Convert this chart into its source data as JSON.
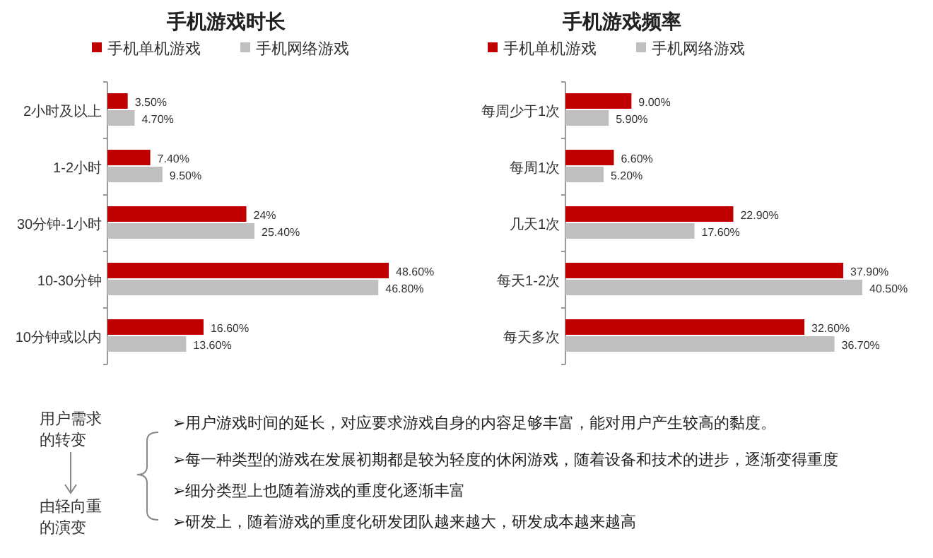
{
  "chart_data": [
    {
      "type": "bar",
      "orientation": "horizontal",
      "title": "手机游戏时长",
      "legend": "top",
      "categories": [
        "2小时及以上",
        "1-2小时",
        "30分钟-1小时",
        "10-30分钟",
        "10分钟或以内"
      ],
      "series": [
        {
          "name": "手机单机游戏",
          "color": "#c00000",
          "values": [
            3.5,
            7.4,
            24,
            48.6,
            16.6
          ],
          "value_labels": [
            "3.50%",
            "7.40%",
            "24%",
            "48.60%",
            "16.60%"
          ]
        },
        {
          "name": "手机网络游戏",
          "color": "#bfbfbf",
          "values": [
            4.7,
            9.5,
            25.4,
            46.8,
            13.6
          ],
          "value_labels": [
            "4.70%",
            "9.50%",
            "25.40%",
            "46.80%",
            "13.60%"
          ]
        }
      ]
    },
    {
      "type": "bar",
      "orientation": "horizontal",
      "title": "手机游戏频率",
      "legend": "top",
      "categories": [
        "每周少于1次",
        "每周1次",
        "几天1次",
        "每天1-2次",
        "每天多次"
      ],
      "series": [
        {
          "name": "手机单机游戏",
          "color": "#c00000",
          "values": [
            9.0,
            6.6,
            22.9,
            37.9,
            32.6
          ],
          "value_labels": [
            "9.00%",
            "6.60%",
            "22.90%",
            "37.90%",
            "32.60%"
          ]
        },
        {
          "name": "手机网络游戏",
          "color": "#bfbfbf",
          "values": [
            5.9,
            5.2,
            17.6,
            40.5,
            36.7
          ],
          "value_labels": [
            "5.90%",
            "5.20%",
            "17.60%",
            "40.50%",
            "36.70%"
          ]
        }
      ]
    },
    {
      "type": "other",
      "annotations": [
        "用户需求的转变",
        "由轻向重的演变",
        "➢用户游戏时间的延长，对应要求游戏自身的内容足够丰富，能对用户产生较高的黏度。",
        "➢每一种类型的游戏在发展初期都是较为轻度的休闲游戏，随着设备和技术的进步，逐渐变得重度",
        "➢细分类型上也随着游戏的重度化逐渐丰富",
        "➢研发上，随着游戏的重度化研发团队越来越大，研发成本越来越高"
      ]
    }
  ]
}
